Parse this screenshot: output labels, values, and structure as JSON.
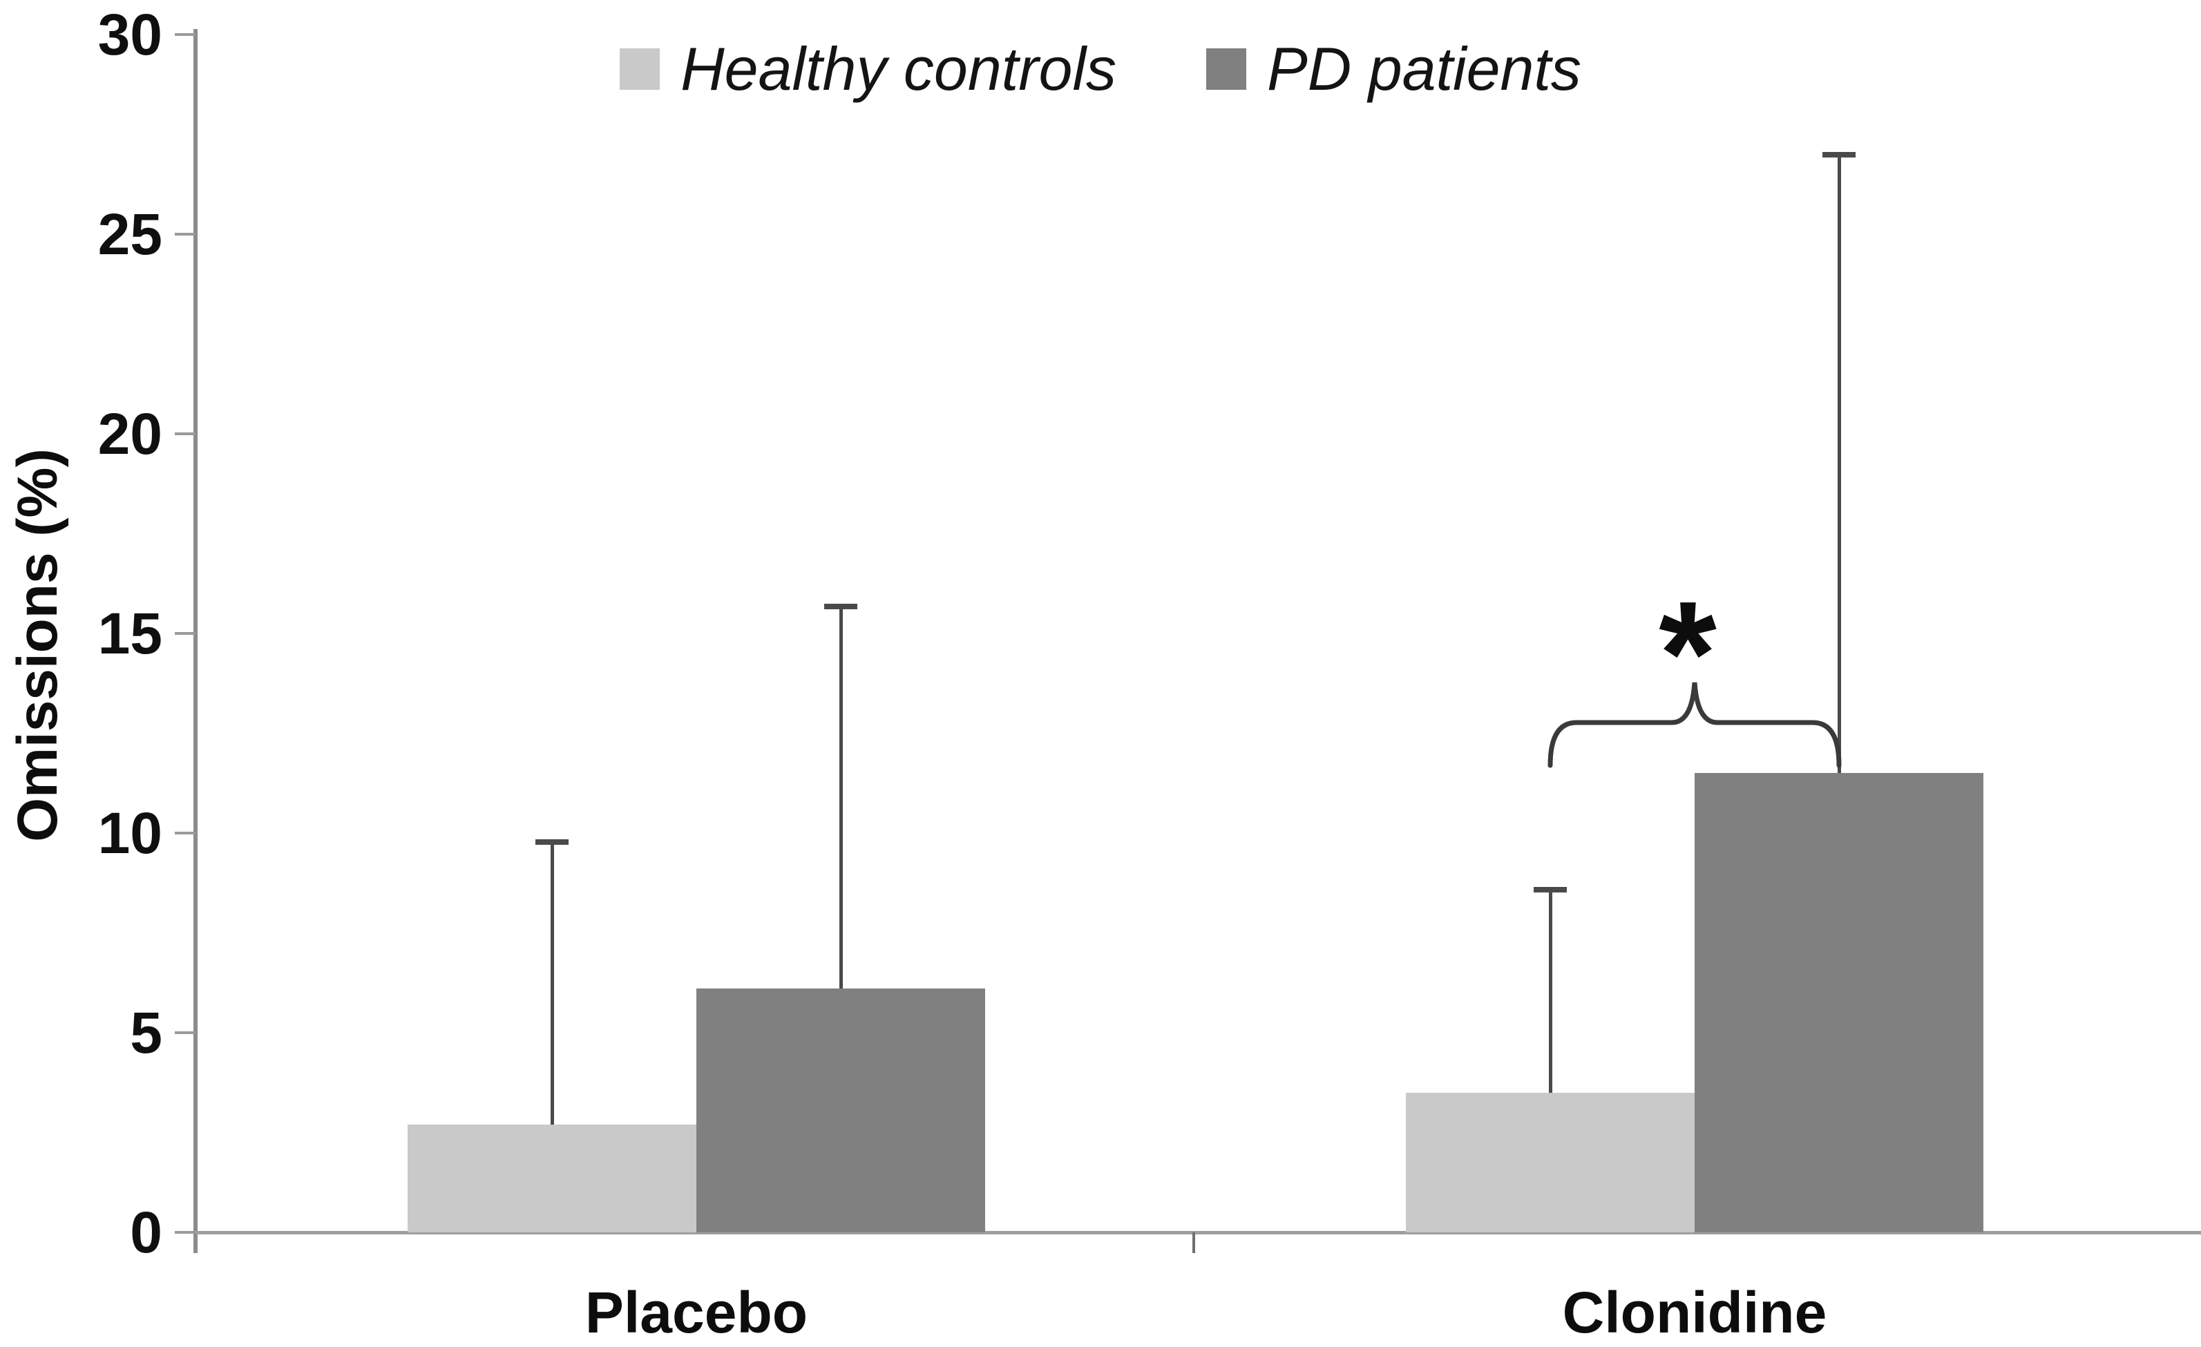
{
  "chart_data": {
    "type": "bar",
    "title": "",
    "ylabel": "Omissions (%)",
    "xlabel": "",
    "categories": [
      "Placebo",
      "Clonidine"
    ],
    "series": [
      {
        "name": "Healthy controls",
        "color": "#c9c9c9",
        "values": [
          2.7,
          3.5
        ],
        "error_plus": [
          7.1,
          5.1
        ],
        "error_top": [
          9.8,
          8.6
        ]
      },
      {
        "name": "PD patients",
        "color": "#808080",
        "values": [
          6.1,
          11.5
        ],
        "error_plus": [
          9.6,
          15.5
        ],
        "error_top": [
          15.7,
          27.0
        ]
      }
    ],
    "ylim": [
      0,
      30
    ],
    "yticks": [
      0,
      5,
      10,
      15,
      20,
      25,
      30
    ],
    "grid": false,
    "legend_position": "top-center",
    "annotation": {
      "symbol": "*",
      "category": "Clonidine",
      "between": [
        "Healthy controls",
        "PD patients"
      ]
    }
  },
  "colors": {
    "baseline": "#9e9e9e",
    "y_axis": "#8c8c8c",
    "error_bar": "#4a4a4a",
    "brace": "#3a3a3a",
    "text": "#0d0d0d"
  }
}
